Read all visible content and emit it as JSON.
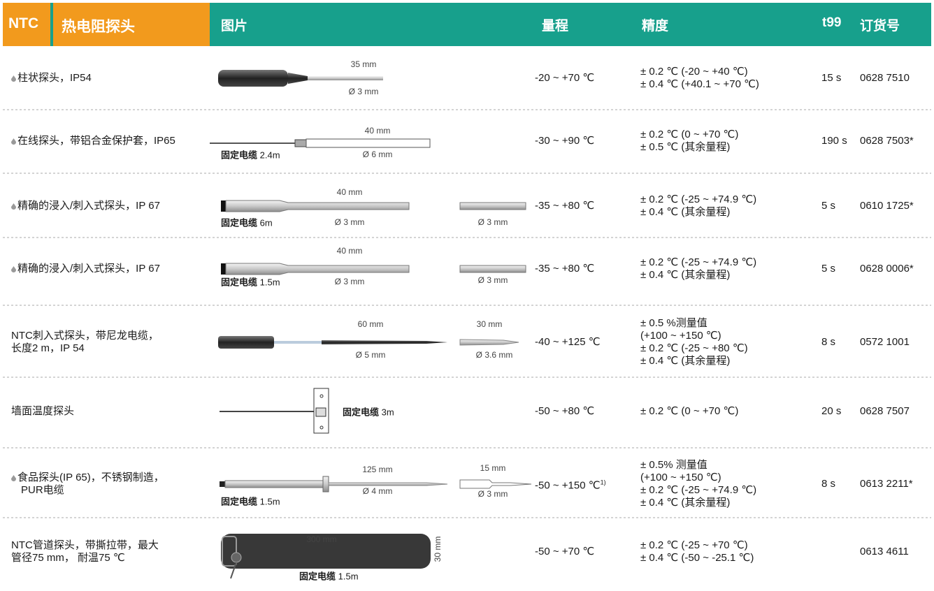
{
  "header": {
    "badge": "NTC",
    "title": "热电阻探头",
    "columns": [
      "图片",
      "量程",
      "精度",
      "t99",
      "订货号"
    ]
  },
  "rows": [
    {
      "name": [
        "柱状探头，IP54"
      ],
      "labels": [
        "35 mm",
        "Ø 3 mm"
      ],
      "range": "-20 ~ +70 ℃",
      "accuracy": [
        "± 0.2 ℃ (-20 ~ +40 ℃)",
        "± 0.4 ℃ (+40.1 ~ +70 ℃)"
      ],
      "t99": "15 s",
      "order": "0628 7510"
    },
    {
      "name": [
        "在线探头，带铝合金保护套，IP65"
      ],
      "labels": [
        "40 mm",
        "Ø 6 mm"
      ],
      "cable": {
        "label": "固定电缆",
        "length": "2.4m"
      },
      "range": "-30 ~ +90 ℃",
      "accuracy": [
        "± 0.2 ℃ (0 ~ +70 ℃)",
        "± 0.5 ℃ (其余量程)"
      ],
      "t99": "190 s",
      "order": "0628 7503*"
    },
    {
      "name": [
        "精确的浸入/刺入式探头，IP 67"
      ],
      "labels": [
        "40 mm",
        "Ø 3 mm",
        "Ø 3 mm"
      ],
      "cable": {
        "label": "固定电缆",
        "length": "6m"
      },
      "range": "-35 ~ +80 ℃",
      "accuracy": [
        "± 0.2 ℃ (-25 ~ +74.9 ℃)",
        "± 0.4 ℃ (其余量程)"
      ],
      "t99": "5 s",
      "order": "0610 1725*"
    },
    {
      "name": [
        "精确的浸入/刺入式探头，IP 67"
      ],
      "labels": [
        "40 mm",
        "Ø 3 mm",
        "Ø 3 mm"
      ],
      "cable": {
        "label": "固定电缆",
        "length": "1.5m"
      },
      "range": "-35 ~ +80 ℃",
      "accuracy": [
        "± 0.2 ℃ (-25 ~ +74.9 ℃)",
        "± 0.4 ℃ (其余量程)"
      ],
      "t99": "5 s",
      "order": "0628 0006*"
    },
    {
      "name": [
        "NTC刺入式探头，带尼龙电缆，",
        "长度2 m，IP 54"
      ],
      "labels": [
        "60 mm",
        "Ø 5 mm",
        "30 mm",
        "Ø 3.6 mm"
      ],
      "range": "-40 ~ +125 ℃",
      "accuracy": [
        "± 0.5 %测量值",
        "(+100 ~ +150 ℃)",
        "± 0.2 ℃ (-25 ~ +80 ℃)",
        "± 0.4 ℃ (其余量程)"
      ],
      "t99": "8 s",
      "order": "0572 1001"
    },
    {
      "name": [
        "墙面温度探头"
      ],
      "labels": [],
      "cable": {
        "label": "固定电缆",
        "length": "3m"
      },
      "range": "-50 ~ +80 ℃",
      "accuracy": [
        "± 0.2 ℃ (0 ~ +70 ℃)"
      ],
      "t99": "20 s",
      "order": "0628 7507"
    },
    {
      "name": [
        "食品探头(IP 65)，不锈钢制造，",
        "PUR电缆"
      ],
      "labels": [
        "125 mm",
        "Ø 4 mm",
        "15 mm",
        "Ø 3 mm"
      ],
      "cable": {
        "label": "固定电缆",
        "length": "1.5m"
      },
      "range": "-50 ~ +150 ℃",
      "range_note": "1)",
      "accuracy": [
        "± 0.5% 测量值",
        "(+100 ~ +150 ℃)",
        "± 0.2 ℃ (-25 ~ +74.9 ℃)",
        "± 0.4 ℃ (其余量程)"
      ],
      "t99": "8 s",
      "order": "0613 2211*"
    },
    {
      "name": [
        "NTC管道探头，带撕拉带，最大",
        "管径75 mm， 耐温75 ℃"
      ],
      "labels": [
        "300 mm",
        "30 mm"
      ],
      "cable": {
        "label": "固定电缆",
        "length": "1.5m"
      },
      "range": "-50 ~ +70 ℃",
      "accuracy": [
        "± 0.2 ℃ (-25 ~ +70 ℃)",
        "± 0.4 ℃ (-50 ~ -25.1 ℃)"
      ],
      "order": "0613 4611"
    }
  ]
}
